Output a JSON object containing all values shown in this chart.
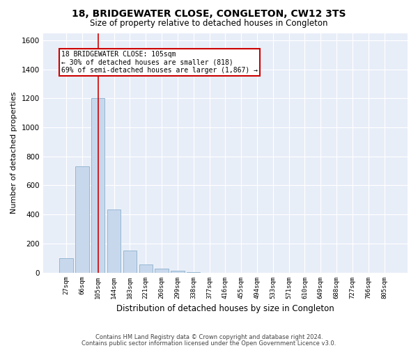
{
  "title": "18, BRIDGEWATER CLOSE, CONGLETON, CW12 3TS",
  "subtitle": "Size of property relative to detached houses in Congleton",
  "xlabel": "Distribution of detached houses by size in Congleton",
  "ylabel": "Number of detached properties",
  "categories": [
    "27sqm",
    "66sqm",
    "105sqm",
    "144sqm",
    "183sqm",
    "221sqm",
    "260sqm",
    "299sqm",
    "338sqm",
    "377sqm",
    "416sqm",
    "455sqm",
    "494sqm",
    "533sqm",
    "571sqm",
    "610sqm",
    "649sqm",
    "688sqm",
    "727sqm",
    "766sqm",
    "805sqm"
  ],
  "values": [
    100,
    730,
    1200,
    435,
    150,
    55,
    25,
    10,
    2,
    0,
    0,
    0,
    0,
    0,
    0,
    0,
    0,
    0,
    0,
    0,
    0
  ],
  "bar_color": "#c8d8ec",
  "bar_edge_color": "#8ab0cc",
  "highlight_x": "105sqm",
  "highlight_color": "#cc0000",
  "ylim": [
    0,
    1650
  ],
  "yticks": [
    0,
    200,
    400,
    600,
    800,
    1000,
    1200,
    1400,
    1600
  ],
  "annotation_title": "18 BRIDGEWATER CLOSE: 105sqm",
  "annotation_line1": "← 30% of detached houses are smaller (818)",
  "annotation_line2": "69% of semi-detached houses are larger (1,867) →",
  "annotation_box_color": "#cc0000",
  "plot_bg_color": "#e8eef8",
  "fig_bg_color": "#ffffff",
  "grid_color": "#ffffff",
  "footer1": "Contains HM Land Registry data © Crown copyright and database right 2024.",
  "footer2": "Contains public sector information licensed under the Open Government Licence v3.0."
}
